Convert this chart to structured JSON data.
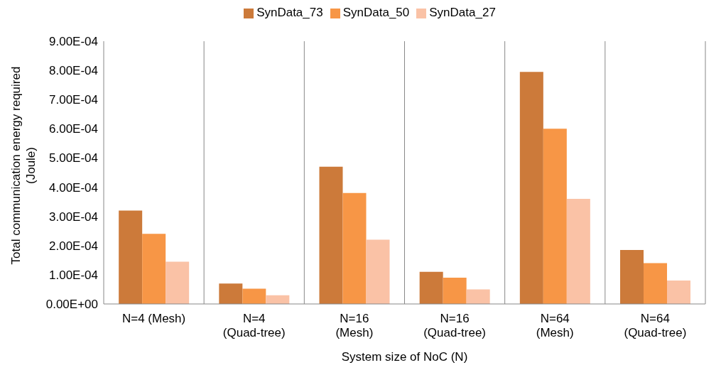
{
  "chart_data": {
    "type": "bar",
    "xlabel": "System size of NoC (N)",
    "ylabel": "Total communication energy required (Joule)",
    "categories": [
      "N=4 (Mesh)",
      "N=4 (Quad-tree)",
      "N=16 (Mesh)",
      "N=16 (Quad-tree)",
      "N=64 (Mesh)",
      "N=64 (Quad-tree)"
    ],
    "series": [
      {
        "name": "SynData_73",
        "color": "#cc7a3a",
        "values": [
          0.00032,
          7e-05,
          0.00047,
          0.00011,
          0.000795,
          0.000185
        ]
      },
      {
        "name": "SynData_50",
        "color": "#f79646",
        "values": [
          0.00024,
          5.2e-05,
          0.00038,
          9e-05,
          0.0006,
          0.00014
        ]
      },
      {
        "name": "SynData_27",
        "color": "#fac2a6",
        "values": [
          0.000145,
          3e-05,
          0.00022,
          5e-05,
          0.00036,
          8e-05
        ]
      }
    ],
    "ylim": [
      0,
      0.0009
    ],
    "yticks": [
      {
        "value": 0,
        "label": "0.00E+00"
      },
      {
        "value": 0.0001,
        "label": "1.00E-04"
      },
      {
        "value": 0.0002,
        "label": "2.00E-04"
      },
      {
        "value": 0.0003,
        "label": "3.00E-04"
      },
      {
        "value": 0.0004,
        "label": "4.00E-04"
      },
      {
        "value": 0.0005,
        "label": "5.00E-04"
      },
      {
        "value": 0.0006,
        "label": "6.00E-04"
      },
      {
        "value": 0.0007,
        "label": "7.00E-04"
      },
      {
        "value": 0.0008,
        "label": "8.00E-04"
      },
      {
        "value": 0.0009,
        "label": "9.00E-04"
      }
    ],
    "grid": "x",
    "legend": "top"
  }
}
